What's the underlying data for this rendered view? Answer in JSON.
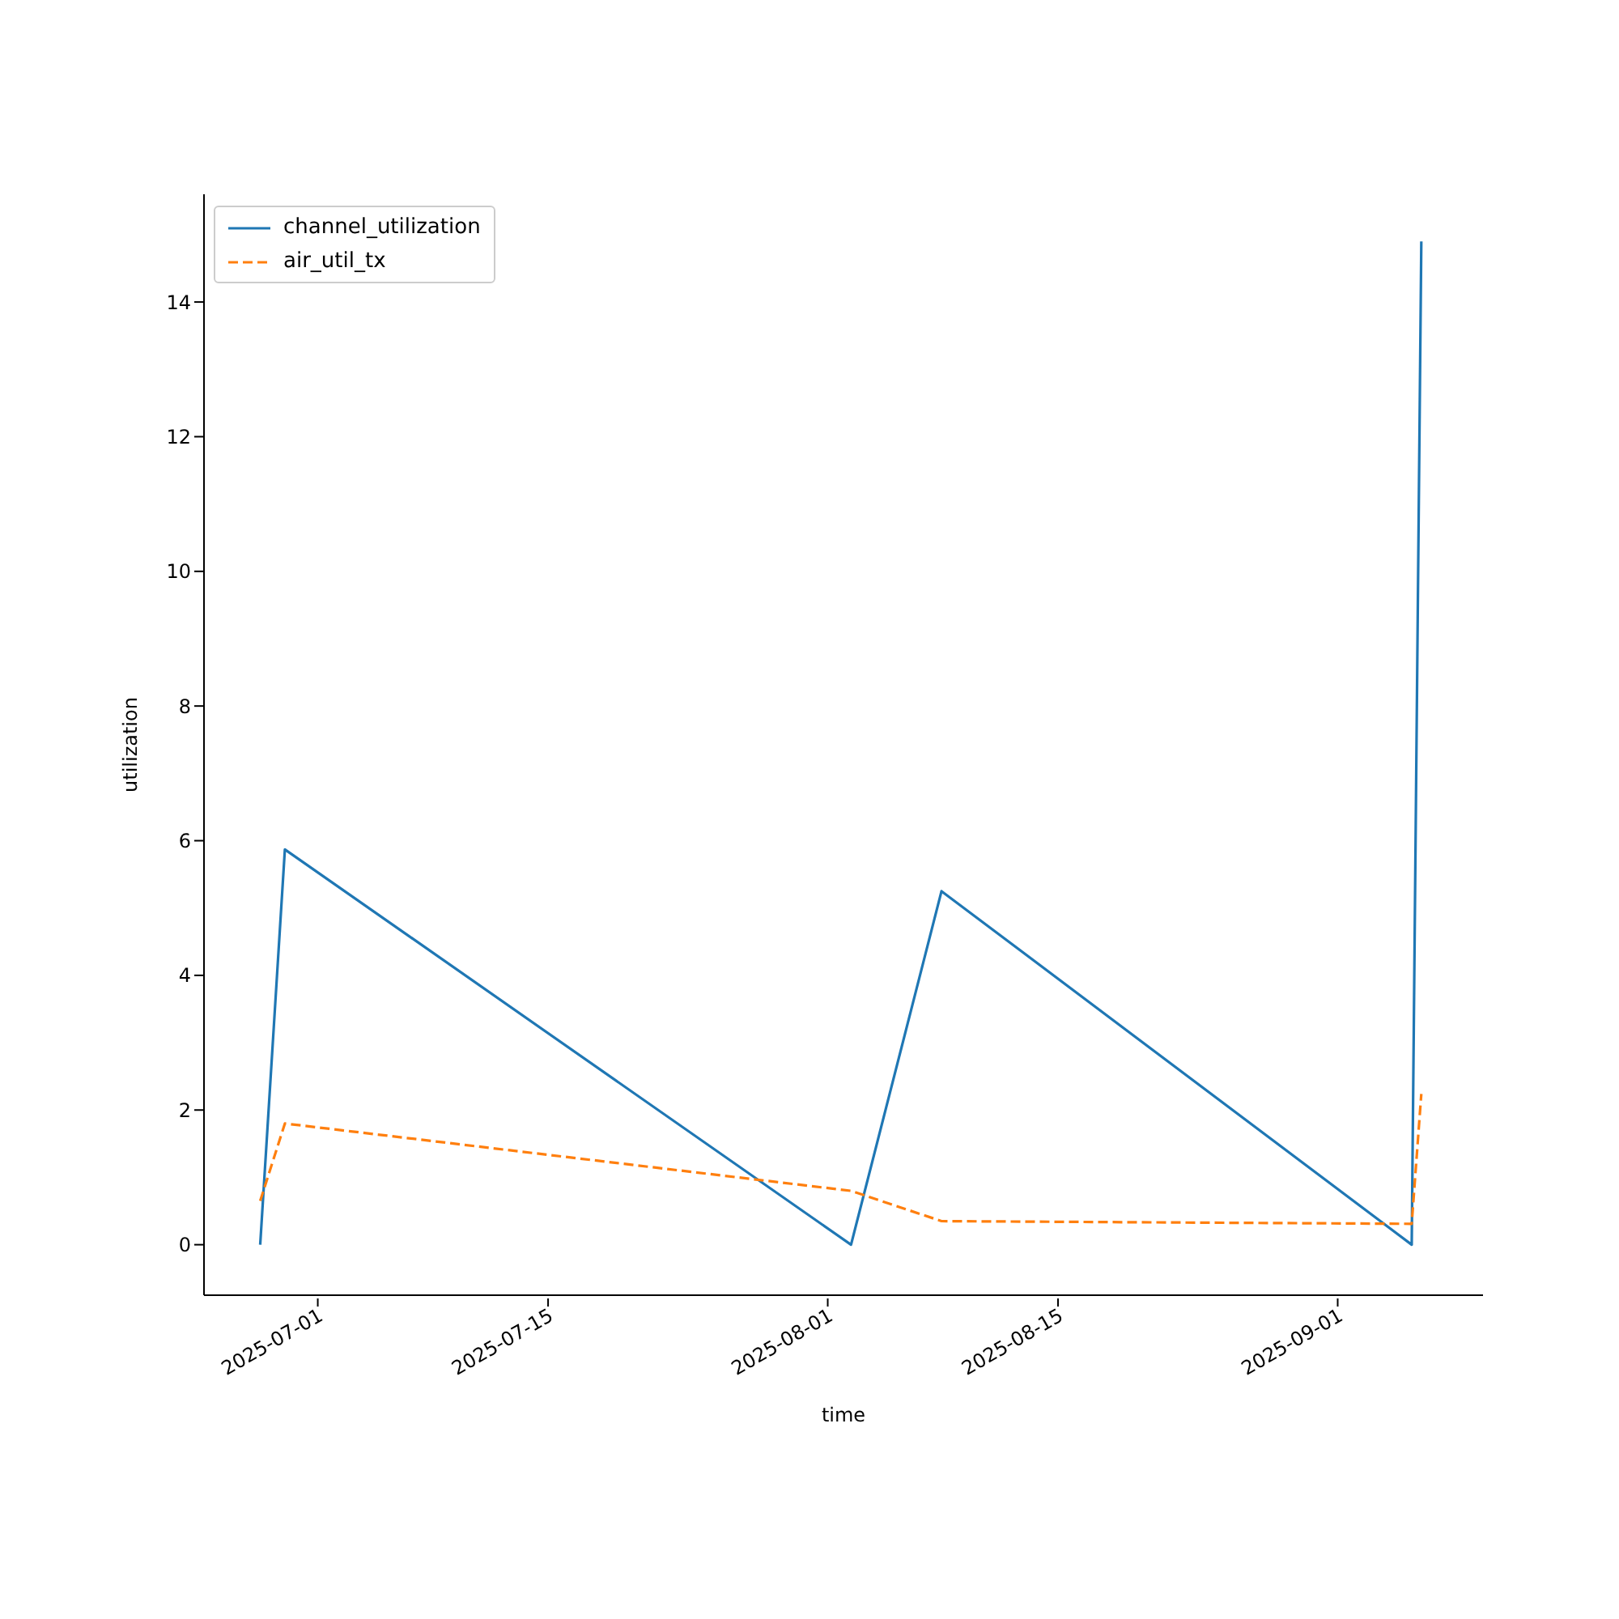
{
  "chart_data": {
    "type": "line",
    "xlabel": "time",
    "ylabel": "utilization",
    "xlim": [
      "2025-06-24T02:00",
      "2025-09-09T20:00"
    ],
    "xticks": [
      "2025-07-01",
      "2025-07-15",
      "2025-08-01",
      "2025-08-15",
      "2025-09-01"
    ],
    "ylim": [
      -0.75,
      15.6
    ],
    "yticks": [
      0,
      2,
      4,
      6,
      8,
      10,
      12,
      14
    ],
    "legend": "top left",
    "series": [
      {
        "name": "channel_utilization",
        "color": "#1f77b4",
        "line_style": "solid",
        "x": [
          "2025-06-27T12:00",
          "2025-06-29T00:00",
          "2025-08-02T10:00",
          "2025-08-07T22:00",
          "2025-09-05T12:00",
          "2025-09-06T02:00"
        ],
        "values": [
          0,
          5.87,
          0,
          5.25,
          0,
          14.9
        ]
      },
      {
        "name": "air_util_tx",
        "color": "#ff7f0e",
        "line_style": "dashed",
        "x": [
          "2025-06-27T12:00",
          "2025-06-29T00:00",
          "2025-08-02T10:00",
          "2025-08-07T22:00",
          "2025-09-05T12:00",
          "2025-09-06T02:00"
        ],
        "values": [
          0.65,
          1.8,
          0.8,
          0.35,
          0.31,
          2.24
        ]
      }
    ]
  }
}
